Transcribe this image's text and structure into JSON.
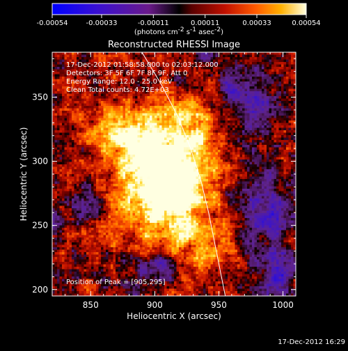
{
  "chart_data": {
    "type": "heatmap",
    "title": "Reconstructed RHESSI Image",
    "xlabel": "Heliocentric X (arcsec)",
    "ylabel": "Heliocentric Y (arcsec)",
    "xlim": [
      820,
      1010
    ],
    "ylim": [
      195,
      385
    ],
    "x_ticks": [
      850,
      900,
      950,
      1000
    ],
    "y_ticks": [
      200,
      250,
      300,
      350
    ],
    "grid": false,
    "colorbar": {
      "position": "top",
      "tick_labels": [
        "-0.00054",
        "-0.00033",
        "-0.00011",
        "0.00011",
        "0.00033",
        "0.00054"
      ],
      "range": [
        -0.00054,
        0.00054
      ],
      "units_label": "(photons cm",
      "units_exp1": "-2",
      "units_mid": " s",
      "units_exp2": "-1",
      "units_mid2": " asec",
      "units_exp3": "-2",
      "units_end": ")"
    },
    "annotations": [
      "17-Dec-2012 01:58:58.000 to 02:03:12.000",
      "Detectors: 3F 5F 6F 7F 8F 9F, Att 0",
      "Energy Range: 12.0 - 25.0 keV",
      "Clean     Total counts: 4.72E+03"
    ],
    "peak_label": "Position of Peak = [905,295]",
    "peak_position": [
      905,
      295
    ],
    "limb_curve": [
      [
        890,
        385
      ],
      [
        905,
        360
      ],
      [
        918,
        335
      ],
      [
        928,
        310
      ],
      [
        936,
        285
      ],
      [
        942,
        260
      ],
      [
        947,
        235
      ],
      [
        952,
        210
      ],
      [
        955,
        195
      ]
    ],
    "sources": [
      {
        "x": 905,
        "y": 295,
        "sx": 26,
        "sy": 32,
        "amp": 1.0
      },
      {
        "x": 918,
        "y": 268,
        "sx": 18,
        "sy": 22,
        "amp": 0.55
      },
      {
        "x": 878,
        "y": 318,
        "sx": 18,
        "sy": 14,
        "amp": 0.55
      },
      {
        "x": 942,
        "y": 232,
        "sx": 16,
        "sy": 18,
        "amp": 0.35
      },
      {
        "x": 862,
        "y": 255,
        "sx": 14,
        "sy": 14,
        "amp": 0.3
      },
      {
        "x": 935,
        "y": 330,
        "sx": 16,
        "sy": 14,
        "amp": 0.3
      }
    ],
    "negative_regions": [
      {
        "x": 985,
        "y": 255,
        "sx": 14,
        "sy": 22
      },
      {
        "x": 975,
        "y": 345,
        "sx": 16,
        "sy": 16
      },
      {
        "x": 850,
        "y": 265,
        "sx": 12,
        "sy": 10
      },
      {
        "x": 900,
        "y": 215,
        "sx": 14,
        "sy": 8
      },
      {
        "x": 995,
        "y": 210,
        "sx": 10,
        "sy": 10
      }
    ]
  },
  "footer_timestamp": "17-Dec-2012 16:29"
}
